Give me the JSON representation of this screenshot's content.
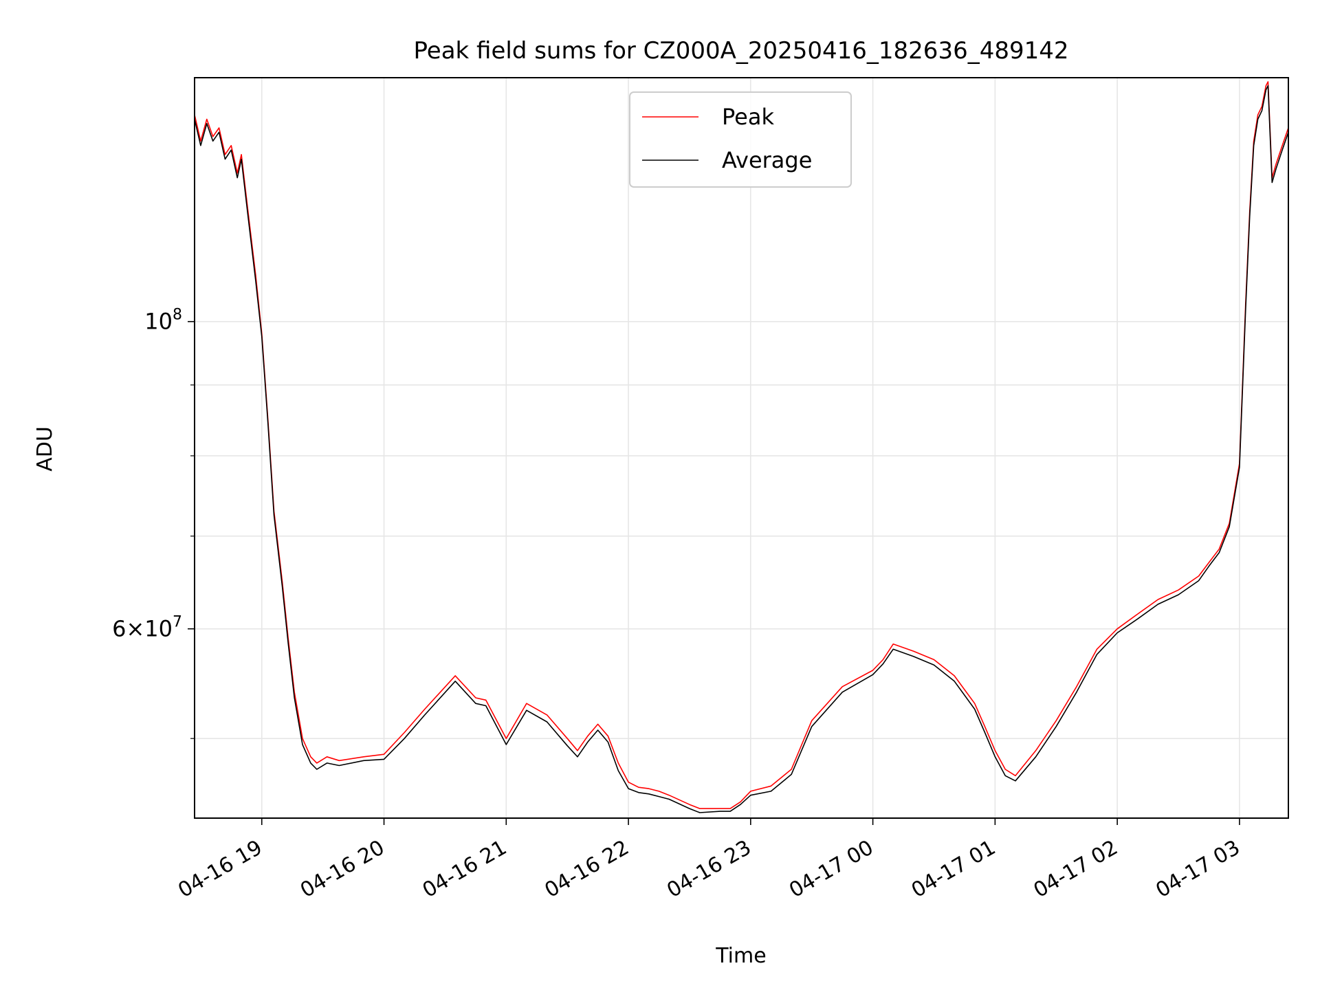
{
  "chart_data": {
    "type": "line",
    "title": "Peak field sums for CZ000A_20250416_182636_489142",
    "xlabel": "Time",
    "ylabel": "ADU",
    "y_scale": "log",
    "xlim": [
      "2025-04-16 18:27",
      "2025-04-17 03:24"
    ],
    "ylim": [
      43800000,
      150000000
    ],
    "grid": true,
    "legend": {
      "placement": "top-center"
    },
    "x_ticks": [
      "04-16 19",
      "04-16 20",
      "04-16 21",
      "04-16 22",
      "04-16 23",
      "04-17 00",
      "04-17 01",
      "04-17 02",
      "04-17 03"
    ],
    "x_tick_times": [
      "2025-04-16 19:00",
      "2025-04-16 20:00",
      "2025-04-16 21:00",
      "2025-04-16 22:00",
      "2025-04-16 23:00",
      "2025-04-17 00:00",
      "2025-04-17 01:00",
      "2025-04-17 02:00",
      "2025-04-17 03:00"
    ],
    "y_major_ticks": [
      {
        "value": 100000000,
        "base": "10",
        "exp": "8"
      },
      {
        "value": 60000000,
        "mant": "6",
        "base": "10",
        "exp": "7"
      }
    ],
    "y_minor_ticks": [
      50000000,
      70000000,
      80000000,
      90000000
    ],
    "x": [
      "2025-04-16 18:27",
      "2025-04-16 18:30",
      "2025-04-16 18:33",
      "2025-04-16 18:36",
      "2025-04-16 18:39",
      "2025-04-16 18:42",
      "2025-04-16 18:45",
      "2025-04-16 18:48",
      "2025-04-16 18:50",
      "2025-04-16 18:53",
      "2025-04-16 18:57",
      "2025-04-16 19:00",
      "2025-04-16 19:03",
      "2025-04-16 19:06",
      "2025-04-16 19:10",
      "2025-04-16 19:13",
      "2025-04-16 19:16",
      "2025-04-16 19:20",
      "2025-04-16 19:24",
      "2025-04-16 19:27",
      "2025-04-16 19:32",
      "2025-04-16 19:38",
      "2025-04-16 19:50",
      "2025-04-16 20:00",
      "2025-04-16 20:10",
      "2025-04-16 20:20",
      "2025-04-16 20:35",
      "2025-04-16 20:45",
      "2025-04-16 20:50",
      "2025-04-16 21:00",
      "2025-04-16 21:10",
      "2025-04-16 21:20",
      "2025-04-16 21:30",
      "2025-04-16 21:35",
      "2025-04-16 21:40",
      "2025-04-16 21:45",
      "2025-04-16 21:50",
      "2025-04-16 21:55",
      "2025-04-16 22:00",
      "2025-04-16 22:05",
      "2025-04-16 22:10",
      "2025-04-16 22:15",
      "2025-04-16 22:20",
      "2025-04-16 22:30",
      "2025-04-16 22:35",
      "2025-04-16 22:45",
      "2025-04-16 22:50",
      "2025-04-16 22:55",
      "2025-04-16 23:00",
      "2025-04-16 23:10",
      "2025-04-16 23:20",
      "2025-04-16 23:30",
      "2025-04-16 23:45",
      "2025-04-17 00:00",
      "2025-04-17 00:05",
      "2025-04-17 00:10",
      "2025-04-17 00:20",
      "2025-04-17 00:30",
      "2025-04-17 00:40",
      "2025-04-17 00:50",
      "2025-04-17 00:55",
      "2025-04-17 01:00",
      "2025-04-17 01:05",
      "2025-04-17 01:10",
      "2025-04-17 01:20",
      "2025-04-17 01:30",
      "2025-04-17 01:40",
      "2025-04-17 01:50",
      "2025-04-17 02:00",
      "2025-04-17 02:10",
      "2025-04-17 02:20",
      "2025-04-17 02:30",
      "2025-04-17 02:40",
      "2025-04-17 02:45",
      "2025-04-17 02:50",
      "2025-04-17 02:55",
      "2025-04-17 03:00",
      "2025-04-17 03:03",
      "2025-04-17 03:05",
      "2025-04-17 03:07",
      "2025-04-17 03:09",
      "2025-04-17 03:11",
      "2025-04-17 03:13",
      "2025-04-17 03:14",
      "2025-04-17 03:16",
      "2025-04-17 03:18",
      "2025-04-17 03:21",
      "2025-04-17 03:24"
    ],
    "series": [
      {
        "name": "Peak",
        "color": "#ff0000",
        "values": [
          141000000,
          135000000,
          140000000,
          136000000,
          138000000,
          132000000,
          134000000,
          128000000,
          132000000,
          121000000,
          108000000,
          98000000,
          85000000,
          73000000,
          65000000,
          59000000,
          54000000,
          50000000,
          48500000,
          48000000,
          48500000,
          48200000,
          48500000,
          48700000,
          50500000,
          52500000,
          55500000,
          53500000,
          53300000,
          50000000,
          53000000,
          52000000,
          50000000,
          49000000,
          50200000,
          51200000,
          50200000,
          48000000,
          46500000,
          46100000,
          46000000,
          45800000,
          45500000,
          44800000,
          44500000,
          44500000,
          44500000,
          45000000,
          45800000,
          46200000,
          47500000,
          51500000,
          54500000,
          56000000,
          57000000,
          58500000,
          57800000,
          57000000,
          55500000,
          53000000,
          51000000,
          49000000,
          47500000,
          47000000,
          49000000,
          51500000,
          54500000,
          58000000,
          60000000,
          61500000,
          63000000,
          64000000,
          65500000,
          67000000,
          68500000,
          71500000,
          79000000,
          103000000,
          120000000,
          135000000,
          141000000,
          143000000,
          148000000,
          149000000,
          127000000,
          130000000,
          134000000,
          138000000
        ]
      },
      {
        "name": "Average",
        "color": "#000000",
        "values": [
          140000000,
          134000000,
          139000000,
          135000000,
          137000000,
          131000000,
          133000000,
          127000000,
          131000000,
          120000000,
          107000000,
          97500000,
          84500000,
          72500000,
          64500000,
          58500000,
          53500000,
          49500000,
          48000000,
          47500000,
          48000000,
          47800000,
          48200000,
          48300000,
          50000000,
          52000000,
          55000000,
          53000000,
          52800000,
          49500000,
          52400000,
          51400000,
          49400000,
          48500000,
          49700000,
          50700000,
          49700000,
          47400000,
          46000000,
          45700000,
          45600000,
          45400000,
          45200000,
          44500000,
          44200000,
          44300000,
          44300000,
          44800000,
          45500000,
          45800000,
          47100000,
          51000000,
          54000000,
          55600000,
          56600000,
          58000000,
          57300000,
          56500000,
          55000000,
          52500000,
          50500000,
          48500000,
          47000000,
          46600000,
          48500000,
          51000000,
          54000000,
          57500000,
          59600000,
          61000000,
          62500000,
          63500000,
          65000000,
          66600000,
          68100000,
          71100000,
          78500000,
          102000000,
          119000000,
          134000000,
          140000000,
          142000000,
          147000000,
          148000000,
          126000000,
          129000000,
          133000000,
          137000000
        ]
      }
    ]
  }
}
